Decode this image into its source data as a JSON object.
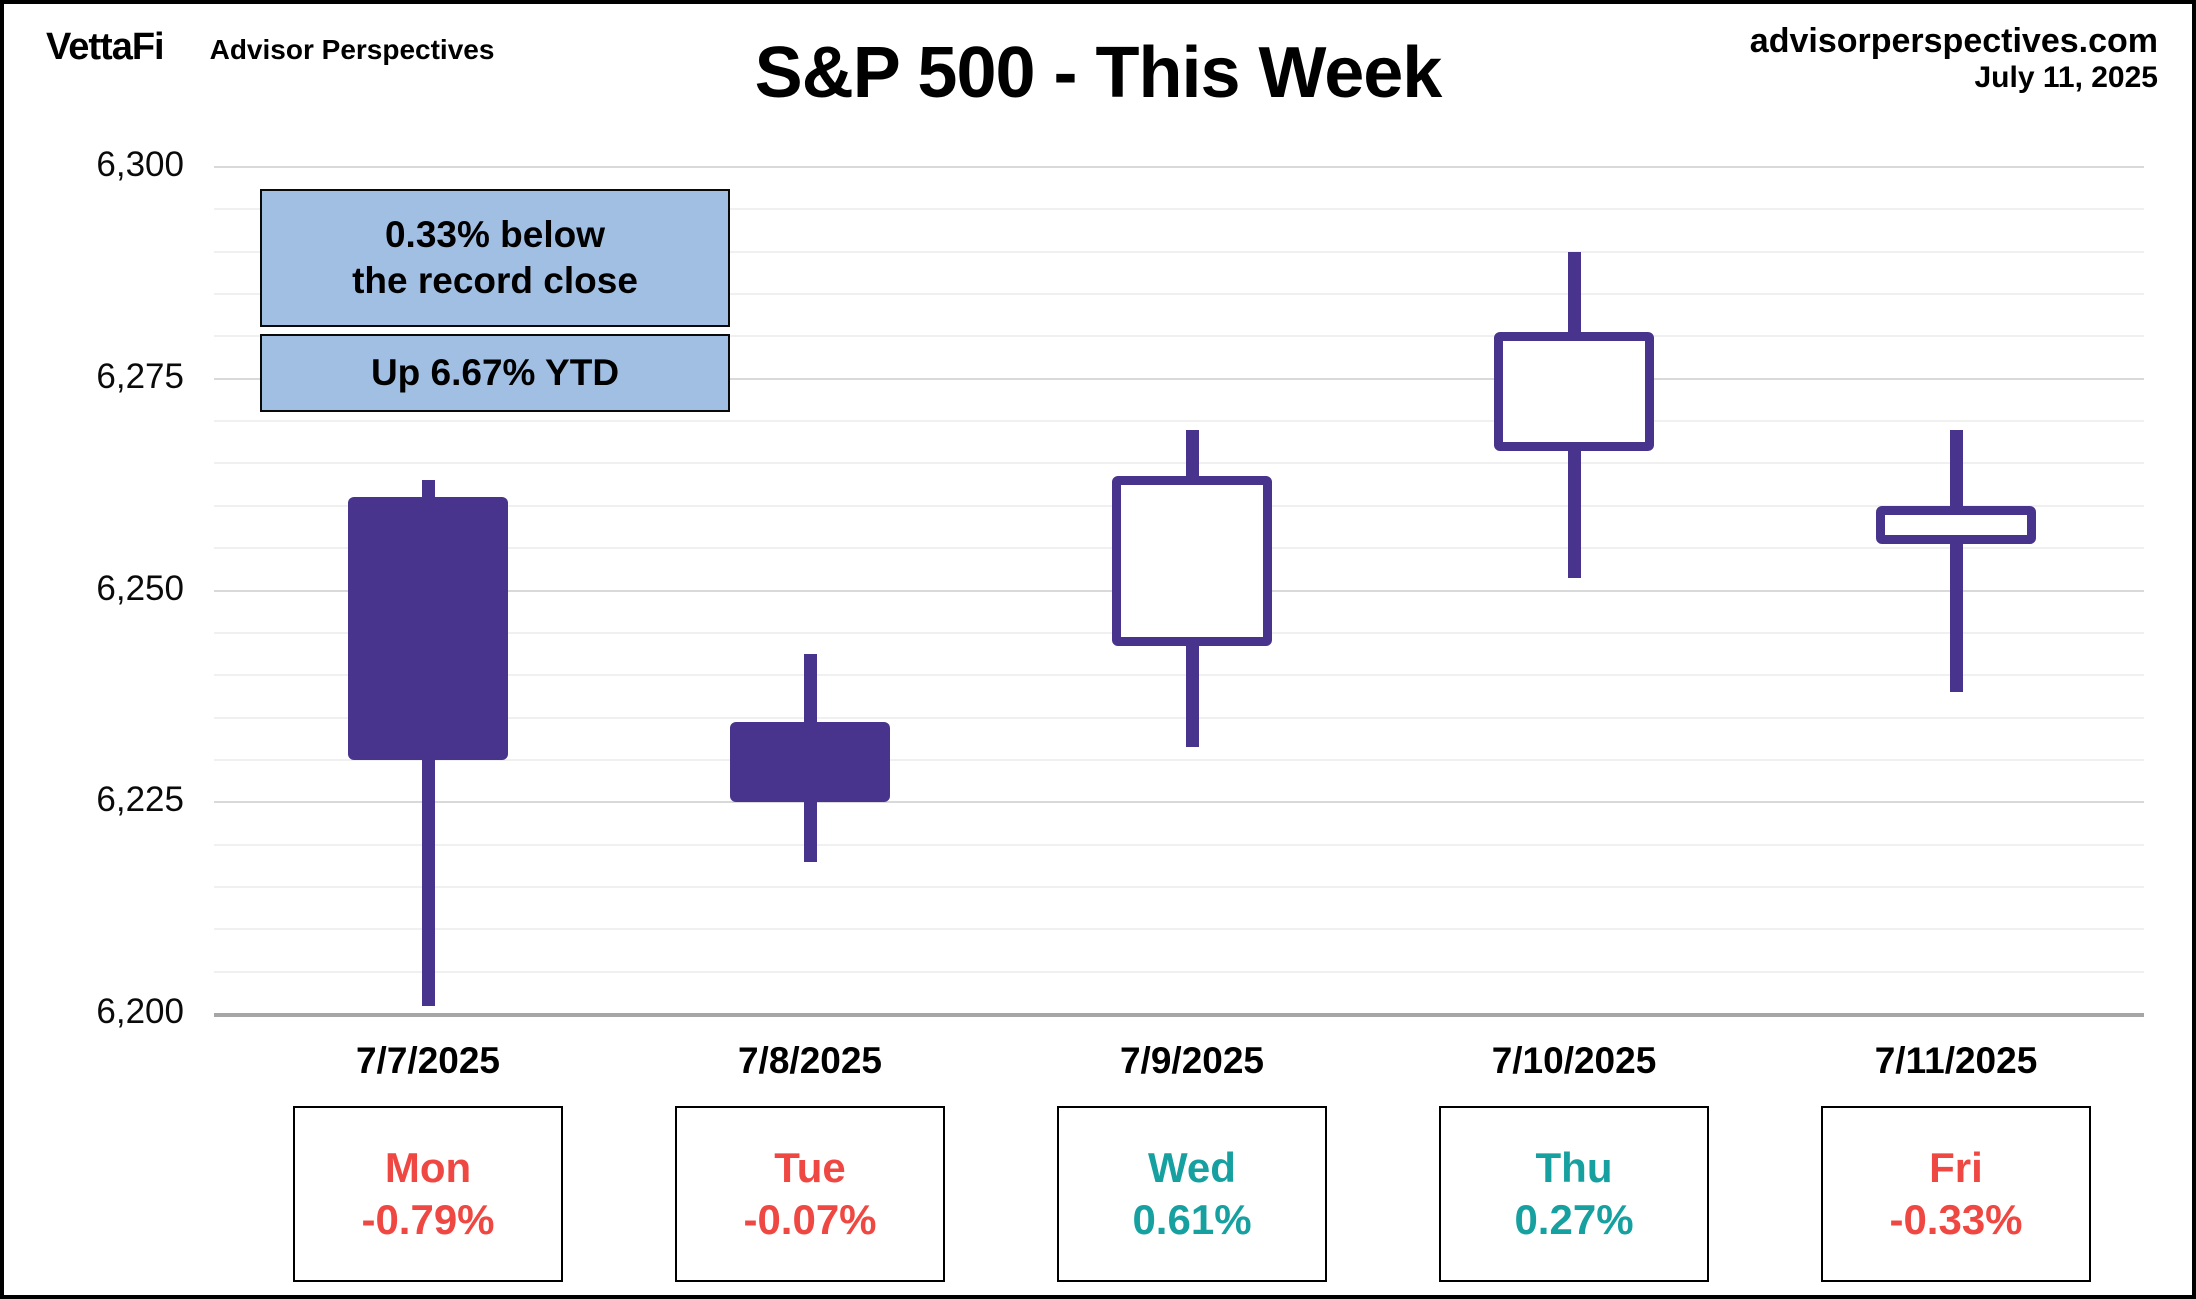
{
  "header": {
    "logo_text": "VettaFi",
    "logo_sub": "Advisor Perspectives",
    "title": "S&P 500 - This Week",
    "source_site": "advisorperspectives.com",
    "source_date": "July 11, 2025"
  },
  "annotations": {
    "record_line1": "0.33% below",
    "record_line2": "the record close",
    "ytd_line": "Up 6.67% YTD",
    "box_fill_color": "#A1BEE3"
  },
  "chart_data": {
    "type": "candlestick",
    "title": "S&P 500 - This Week",
    "ylabel": "",
    "xlabel": "",
    "ylim": [
      6200,
      6300
    ],
    "y_tick_values": [
      6300,
      6275,
      6250,
      6225,
      6200
    ],
    "y_tick_labels": [
      "6,300",
      "6,275",
      "6,250",
      "6,225",
      "6,200"
    ],
    "minor_grid_step": 5,
    "major_grid_step": 25,
    "grid_on": true,
    "candles": [
      {
        "date": "7/7/2025",
        "day": "Mon",
        "change": "-0.79%",
        "open": 6261.0,
        "high": 6263.0,
        "low": 6201.0,
        "close": 6230.0,
        "style": "filled"
      },
      {
        "date": "7/8/2025",
        "day": "Tue",
        "change": "-0.07%",
        "open": 6234.5,
        "high": 6242.5,
        "low": 6218.0,
        "close": 6225.0,
        "style": "filled"
      },
      {
        "date": "7/9/2025",
        "day": "Wed",
        "change": "0.61%",
        "open": 6243.5,
        "high": 6269.0,
        "low": 6231.5,
        "close": 6263.5,
        "style": "hollow"
      },
      {
        "date": "7/10/2025",
        "day": "Thu",
        "change": "0.27%",
        "open": 6266.5,
        "high": 6290.0,
        "low": 6251.5,
        "close": 6280.5,
        "style": "hollow"
      },
      {
        "date": "7/11/2025",
        "day": "Fri",
        "change": "-0.33%",
        "open": 6255.5,
        "high": 6269.0,
        "low": 6238.0,
        "close": 6260.0,
        "style": "hollow"
      }
    ],
    "colors": {
      "candle": "#48348C",
      "positive_text": "#17A0A0",
      "negative_text": "#EF4742"
    }
  }
}
